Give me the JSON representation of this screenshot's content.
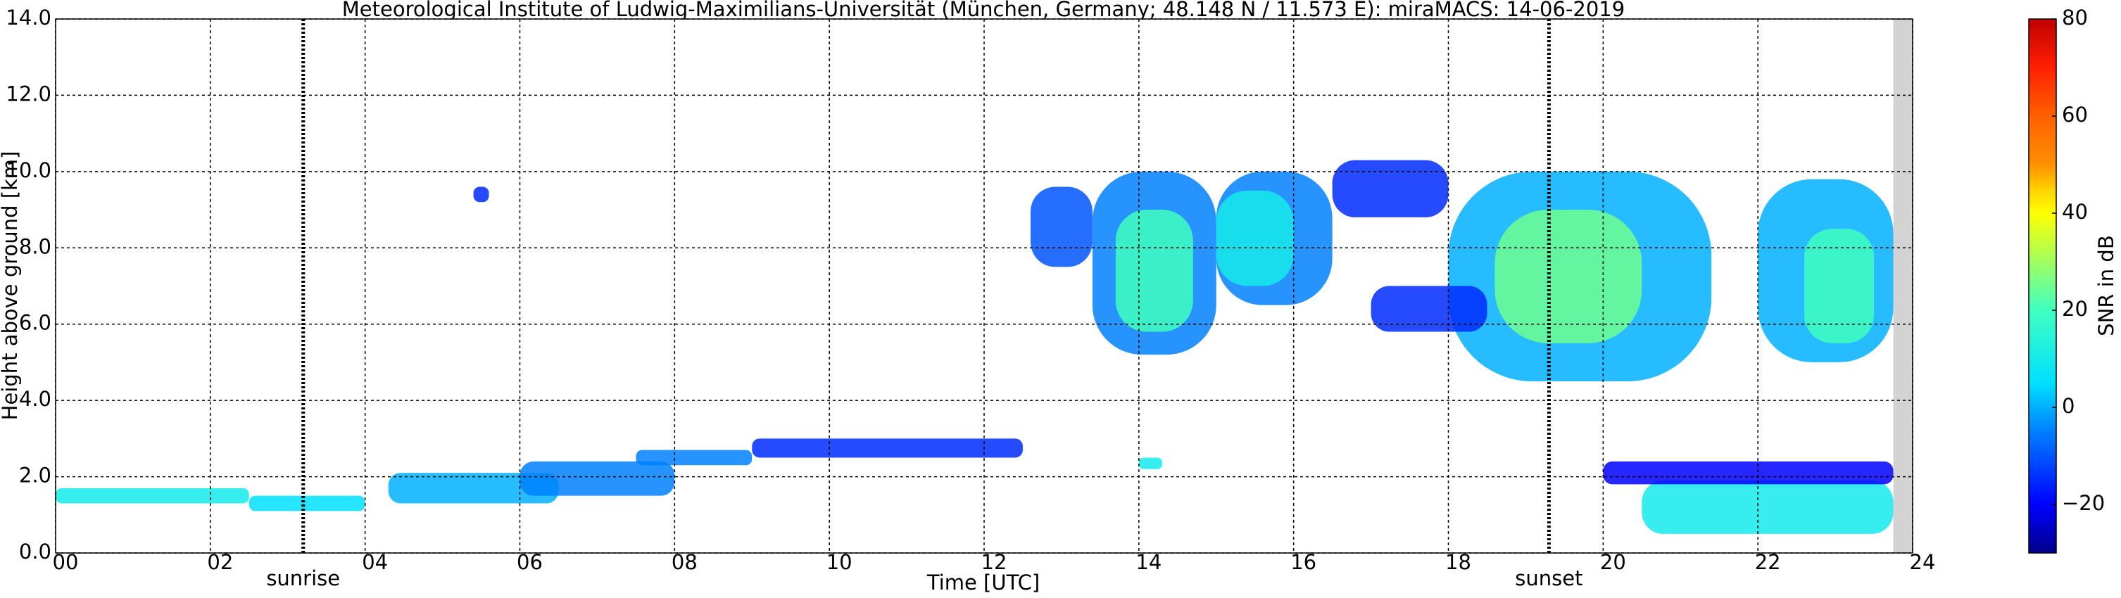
{
  "chart_data": {
    "type": "time-height",
    "title": "Meteorological Institute of Ludwig-Maximilians-Universität (München, Germany; 48.148 N / 11.573 E):    miraMACS: 14-06-2019",
    "xlabel": "Time [UTC]",
    "ylabel": "Height above ground [km]",
    "xlim": [
      0,
      24
    ],
    "xticks": [
      {
        "value": 0,
        "label": "00"
      },
      {
        "value": 2,
        "label": "02"
      },
      {
        "value": 4,
        "label": "04"
      },
      {
        "value": 6,
        "label": "06"
      },
      {
        "value": 8,
        "label": "08"
      },
      {
        "value": 10,
        "label": "10"
      },
      {
        "value": 12,
        "label": "12"
      },
      {
        "value": 14,
        "label": "14"
      },
      {
        "value": 16,
        "label": "16"
      },
      {
        "value": 18,
        "label": "18"
      },
      {
        "value": 20,
        "label": "20"
      },
      {
        "value": 22,
        "label": "22"
      },
      {
        "value": 24,
        "label": "24"
      }
    ],
    "ylim": [
      0,
      14
    ],
    "yticks": [
      {
        "value": 0,
        "label": "0.0"
      },
      {
        "value": 2,
        "label": "2.0"
      },
      {
        "value": 4,
        "label": "4.0"
      },
      {
        "value": 6,
        "label": "6.0"
      },
      {
        "value": 8,
        "label": "8.0"
      },
      {
        "value": 10,
        "label": "10.0"
      },
      {
        "value": 12,
        "label": "12.0"
      },
      {
        "value": 14,
        "label": "14.0"
      }
    ],
    "grid": true,
    "annotations": [
      {
        "label": "sunrise",
        "time": 3.2
      },
      {
        "label": "sunset",
        "time": 19.3
      }
    ],
    "missing": [
      23.75,
      24
    ],
    "colorbar": {
      "label": "SNR in dB",
      "clim": [
        -30,
        80
      ],
      "ticks": [
        {
          "value": -20,
          "label": "−20"
        },
        0,
        20,
        40,
        60,
        80
      ],
      "colormap": [
        {
          "value": -30,
          "color": "#00008b"
        },
        {
          "value": -20,
          "color": "#0000ff"
        },
        {
          "value": -5,
          "color": "#0080ff"
        },
        {
          "value": 5,
          "color": "#00e0ff"
        },
        {
          "value": 20,
          "color": "#40ffc0"
        },
        {
          "value": 30,
          "color": "#a0ff60"
        },
        {
          "value": 40,
          "color": "#ffff00"
        },
        {
          "value": 45,
          "color": "#ffd000"
        },
        {
          "value": 50,
          "color": "#ff9000"
        },
        {
          "value": 60,
          "color": "#ff6000"
        },
        {
          "value": 70,
          "color": "#ff2000"
        },
        {
          "value": 80,
          "color": "#c00000"
        }
      ]
    },
    "cells": [
      [
        0.0,
        2.5,
        1.3,
        1.7,
        10
      ],
      [
        2.5,
        4.0,
        1.1,
        1.5,
        5
      ],
      [
        4.3,
        6.5,
        1.3,
        2.1,
        0
      ],
      [
        6.0,
        8.0,
        1.5,
        2.4,
        -5
      ],
      [
        7.5,
        9.0,
        2.3,
        2.7,
        -5
      ],
      [
        9.0,
        12.5,
        2.5,
        3.0,
        -15
      ],
      [
        5.4,
        5.6,
        9.2,
        9.6,
        -15
      ],
      [
        12.6,
        13.4,
        7.5,
        9.6,
        -10
      ],
      [
        13.4,
        15.0,
        5.2,
        10.0,
        -5
      ],
      [
        13.7,
        14.7,
        5.8,
        9.0,
        20
      ],
      [
        15.0,
        16.5,
        6.5,
        10.0,
        -5
      ],
      [
        15.0,
        16.0,
        7.0,
        9.5,
        10
      ],
      [
        16.5,
        18.0,
        8.8,
        10.3,
        -15
      ],
      [
        18.0,
        21.4,
        4.5,
        10.0,
        0
      ],
      [
        18.6,
        20.5,
        5.5,
        9.0,
        25
      ],
      [
        17.0,
        18.5,
        5.8,
        7.0,
        -15
      ],
      [
        22.0,
        23.75,
        5.0,
        9.8,
        0
      ],
      [
        22.6,
        23.5,
        5.5,
        8.5,
        20
      ],
      [
        20.5,
        23.75,
        0.5,
        1.9,
        10
      ],
      [
        20.0,
        23.75,
        1.8,
        2.4,
        -20
      ],
      [
        14.0,
        14.3,
        2.2,
        2.5,
        10
      ]
    ]
  }
}
